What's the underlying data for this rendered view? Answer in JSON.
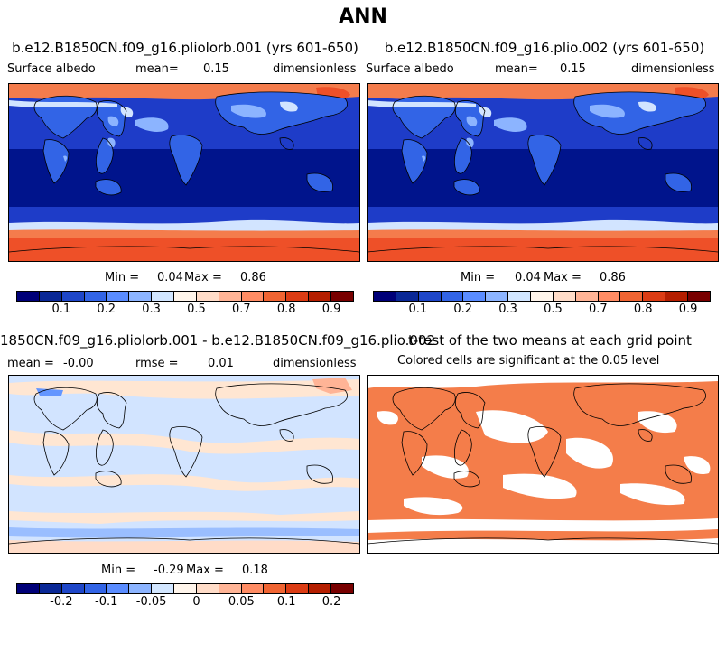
{
  "title": "ANN",
  "panels": {
    "p1": {
      "title": "b.e12.B1850CN.f09_g16.pliolorb.001 (yrs 601-650)",
      "var_label": "Surface albedo",
      "mean_label": "mean=",
      "mean_value": "0.15",
      "units": "dimensionless",
      "min_label": "Min =",
      "min_value": "0.04",
      "max_label": "Max =",
      "max_value": "0.86"
    },
    "p2": {
      "title": "b.e12.B1850CN.f09_g16.plio.002 (yrs 601-650)",
      "var_label": "Surface albedo",
      "mean_label": "mean=",
      "mean_value": "0.15",
      "units": "dimensionless",
      "min_label": "Min =",
      "min_value": "0.04",
      "max_label": "Max =",
      "max_value": "0.86"
    },
    "p3": {
      "title": "1850CN.f09_g16.pliolorb.001 - b.e12.B1850CN.f09_g16.plio.002",
      "mean_label": "mean =",
      "mean_value": "-0.00",
      "rmse_label": "rmse =",
      "rmse_value": "0.01",
      "units": "dimensionless",
      "min_label": "Min =",
      "min_value": "-0.29",
      "max_label": "Max =",
      "max_value": "0.18"
    },
    "p4": {
      "title": "t-test of the two means at each grid point",
      "subtitle": "Colored cells are significant at the 0.05 level"
    }
  },
  "colors": {
    "deep_ocean": "#00148c",
    "mid_blue": "#1e3cc8",
    "light_blue": "#6496ff",
    "pale_blue": "#d2e4ff",
    "pale_orange": "#ffe6d2",
    "orange": "#f47c4c",
    "ice_red": "#ee5028",
    "sig_orange": "#f47d4a"
  },
  "colorbars": {
    "top": {
      "colors": [
        "#000078",
        "#0a2896",
        "#1e46c8",
        "#3264e6",
        "#5a8cff",
        "#8cb4ff",
        "#d2e6ff",
        "#fff5eb",
        "#ffdcc8",
        "#ffb496",
        "#ff8c64",
        "#f06432",
        "#dc3c14",
        "#b41e00",
        "#780000"
      ],
      "tick_labels": [
        "0.1",
        "0.2",
        "0.3",
        "0.5",
        "0.7",
        "0.8",
        "0.9"
      ],
      "tick_positions": [
        3,
        5,
        7,
        9,
        11,
        13,
        15
      ]
    },
    "diff": {
      "colors": [
        "#000078",
        "#0a2896",
        "#1e46c8",
        "#3264e6",
        "#5a8cff",
        "#8cb4ff",
        "#d2e6ff",
        "#fff5eb",
        "#ffdcc8",
        "#ffb496",
        "#ff8c64",
        "#f06432",
        "#dc3c14",
        "#b41e00",
        "#780000"
      ],
      "tick_labels": [
        "-0.2",
        "-0.1",
        "-0.05",
        "0",
        "0.05",
        "0.1",
        "0.2"
      ],
      "tick_positions": [
        3,
        5,
        7,
        9,
        11,
        13,
        15
      ]
    }
  }
}
